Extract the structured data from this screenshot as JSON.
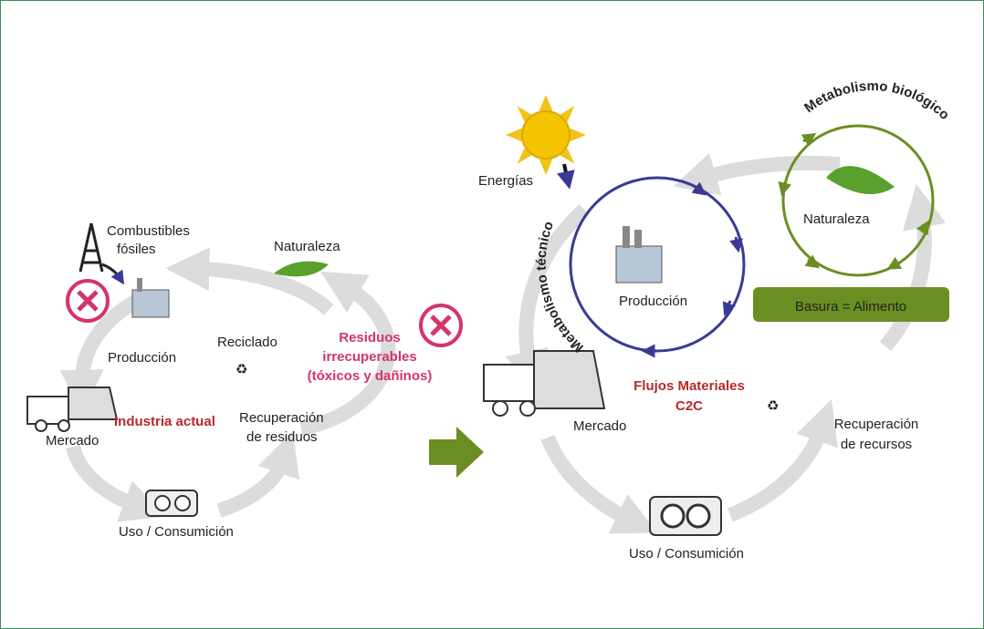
{
  "left": {
    "fossil_fuels": [
      "Combustibles",
      "fósiles"
    ],
    "nature": "Naturaleza",
    "production": "Producción",
    "recycling": "Reciclado",
    "waste": [
      "Residuos",
      "irrecuperables",
      "(tóxicos y dañinos)"
    ],
    "title": "Industria actual",
    "recovery": [
      "Recuperación",
      "de residuos"
    ],
    "market": "Mercado",
    "use": "Uso / Consumición"
  },
  "right": {
    "energy": "Energías",
    "technical_metabolism": "Metabolismo técnico",
    "biological_metabolism": "Metabolismo biológico",
    "nature": "Naturaleza",
    "production": "Producción",
    "waste_food": "Basura = Alimento",
    "title": [
      "Flujos Materiales",
      "C2C"
    ],
    "market": "Mercado",
    "recovery": [
      "Recuperación",
      "de recursos"
    ],
    "use": "Uso / Consumición"
  }
}
